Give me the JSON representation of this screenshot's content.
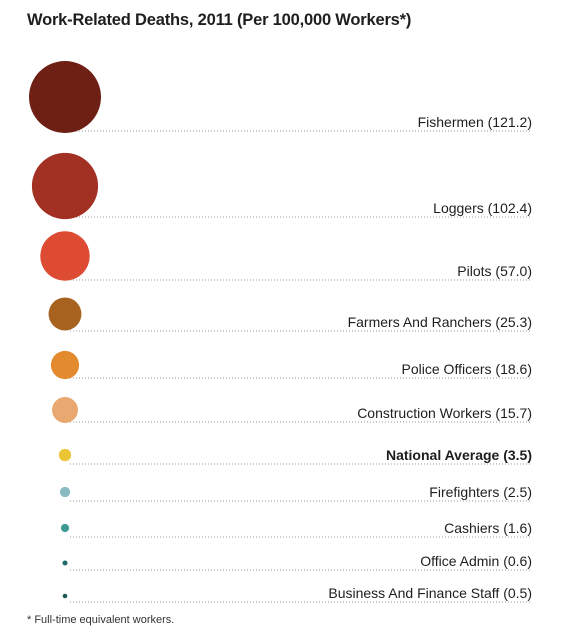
{
  "chart_data": {
    "type": "bubble",
    "title": "Work-Related Deaths, 2011 (Per 100,000 Workers*)",
    "footnote": "* Full-time equivalent workers.",
    "categories": [
      "Fishermen",
      "Loggers",
      "Pilots",
      "Farmers And Ranchers",
      "Police Officers",
      "Construction Workers",
      "National Average",
      "Firefighters",
      "Cashiers",
      "Office Admin",
      "Business And Finance Staff"
    ],
    "values": [
      121.2,
      102.4,
      57.0,
      25.3,
      18.6,
      15.7,
      3.5,
      2.5,
      1.6,
      0.6,
      0.5
    ],
    "labels": [
      "Fishermen (121.2)",
      "Loggers (102.4)",
      "Pilots (57.0)",
      "Farmers And Ranchers (25.3)",
      "Police Officers (18.6)",
      "Construction Workers (15.7)",
      "National Average (3.5)",
      "Firefighters (2.5)",
      "Cashiers (1.6)",
      "Office Admin (0.6)",
      "Business And Finance Staff (0.5)"
    ],
    "colors": [
      "#6e2014",
      "#a23124",
      "#dd4b33",
      "#a8621f",
      "#e38a2f",
      "#e9a870",
      "#edc433",
      "#88bcc0",
      "#3f9a95",
      "#1f6b69",
      "#1c5a58"
    ],
    "highlight": "National Average (3.5)",
    "xlabel": "",
    "ylabel": ""
  }
}
